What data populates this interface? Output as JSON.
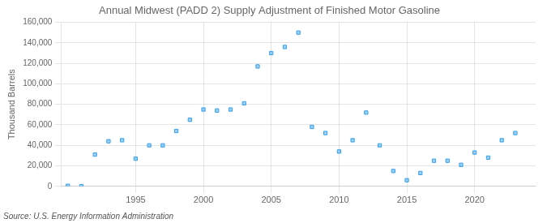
{
  "chart_data": {
    "type": "scatter",
    "title": "Annual Midwest (PADD 2) Supply Adjustment of Finished Motor Gasoline",
    "ylabel": "Thousand Barrels",
    "annotations": [
      "Source: U.S. Energy Information Administration"
    ],
    "x": [
      1990,
      1991,
      1992,
      1993,
      1994,
      1995,
      1996,
      1997,
      1998,
      1999,
      2000,
      2001,
      2002,
      2003,
      2004,
      2005,
      2006,
      2007,
      2008,
      2009,
      2010,
      2011,
      2012,
      2013,
      2014,
      2015,
      2016,
      2017,
      2018,
      2019,
      2020,
      2021,
      2022,
      2023
    ],
    "values": [
      500,
      200,
      31000,
      44000,
      45000,
      27000,
      40000,
      40000,
      54000,
      65000,
      75000,
      74000,
      75000,
      81000,
      117000,
      130000,
      136000,
      150000,
      58000,
      52000,
      34000,
      45000,
      72000,
      40000,
      15000,
      6000,
      13000,
      25000,
      25000,
      21000,
      33000,
      28000,
      45000,
      52000
    ],
    "marker": "square",
    "xlim": [
      1989.5,
      2024.5
    ],
    "xticks": [
      1995,
      2000,
      2005,
      2010,
      2015,
      2020
    ],
    "ylim": [
      0,
      160000
    ],
    "yticks": [
      0,
      {
        "value": 20000,
        "label": "20,000"
      },
      {
        "value": 40000,
        "label": "40,000"
      },
      {
        "value": 60000,
        "label": "60,000"
      },
      {
        "value": 80000,
        "label": "80,000"
      },
      {
        "value": 100000,
        "label": "100,000"
      },
      {
        "value": 120000,
        "label": "120,000"
      },
      {
        "value": 140000,
        "label": "140,000"
      },
      {
        "value": 160000,
        "label": "160,000"
      }
    ],
    "grid": true
  }
}
